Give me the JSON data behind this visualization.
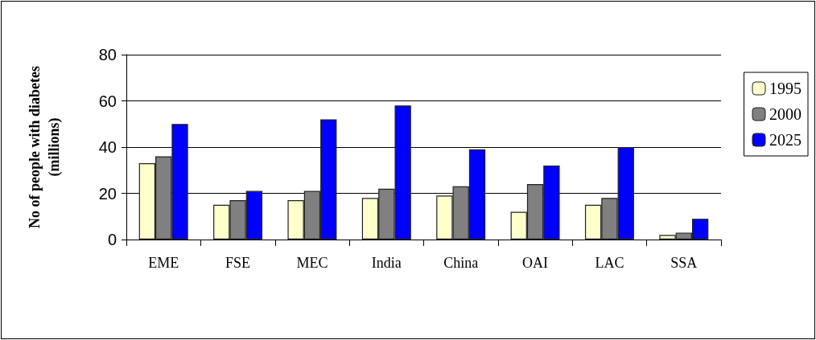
{
  "chart_data": {
    "type": "bar",
    "ylabel": "No of people with diabetes\n(millions)",
    "categories": [
      "EME",
      "FSE",
      "MEC",
      "India",
      "China",
      "OAI",
      "LAC",
      "SSA"
    ],
    "series": [
      {
        "name": "1995",
        "color": "#ffffcc",
        "values": [
          33,
          15,
          17,
          18,
          19,
          12,
          15,
          2
        ]
      },
      {
        "name": "2000",
        "color": "#808080",
        "values": [
          36,
          17,
          21,
          22,
          23,
          24,
          18,
          3
        ]
      },
      {
        "name": "2025",
        "color": "#0000ff",
        "values": [
          50,
          21,
          52,
          58,
          39,
          32,
          40,
          9
        ]
      }
    ],
    "ylim": [
      0,
      80
    ],
    "yticks": [
      0,
      20,
      40,
      60,
      80
    ],
    "grid": "y",
    "legend": "right"
  }
}
